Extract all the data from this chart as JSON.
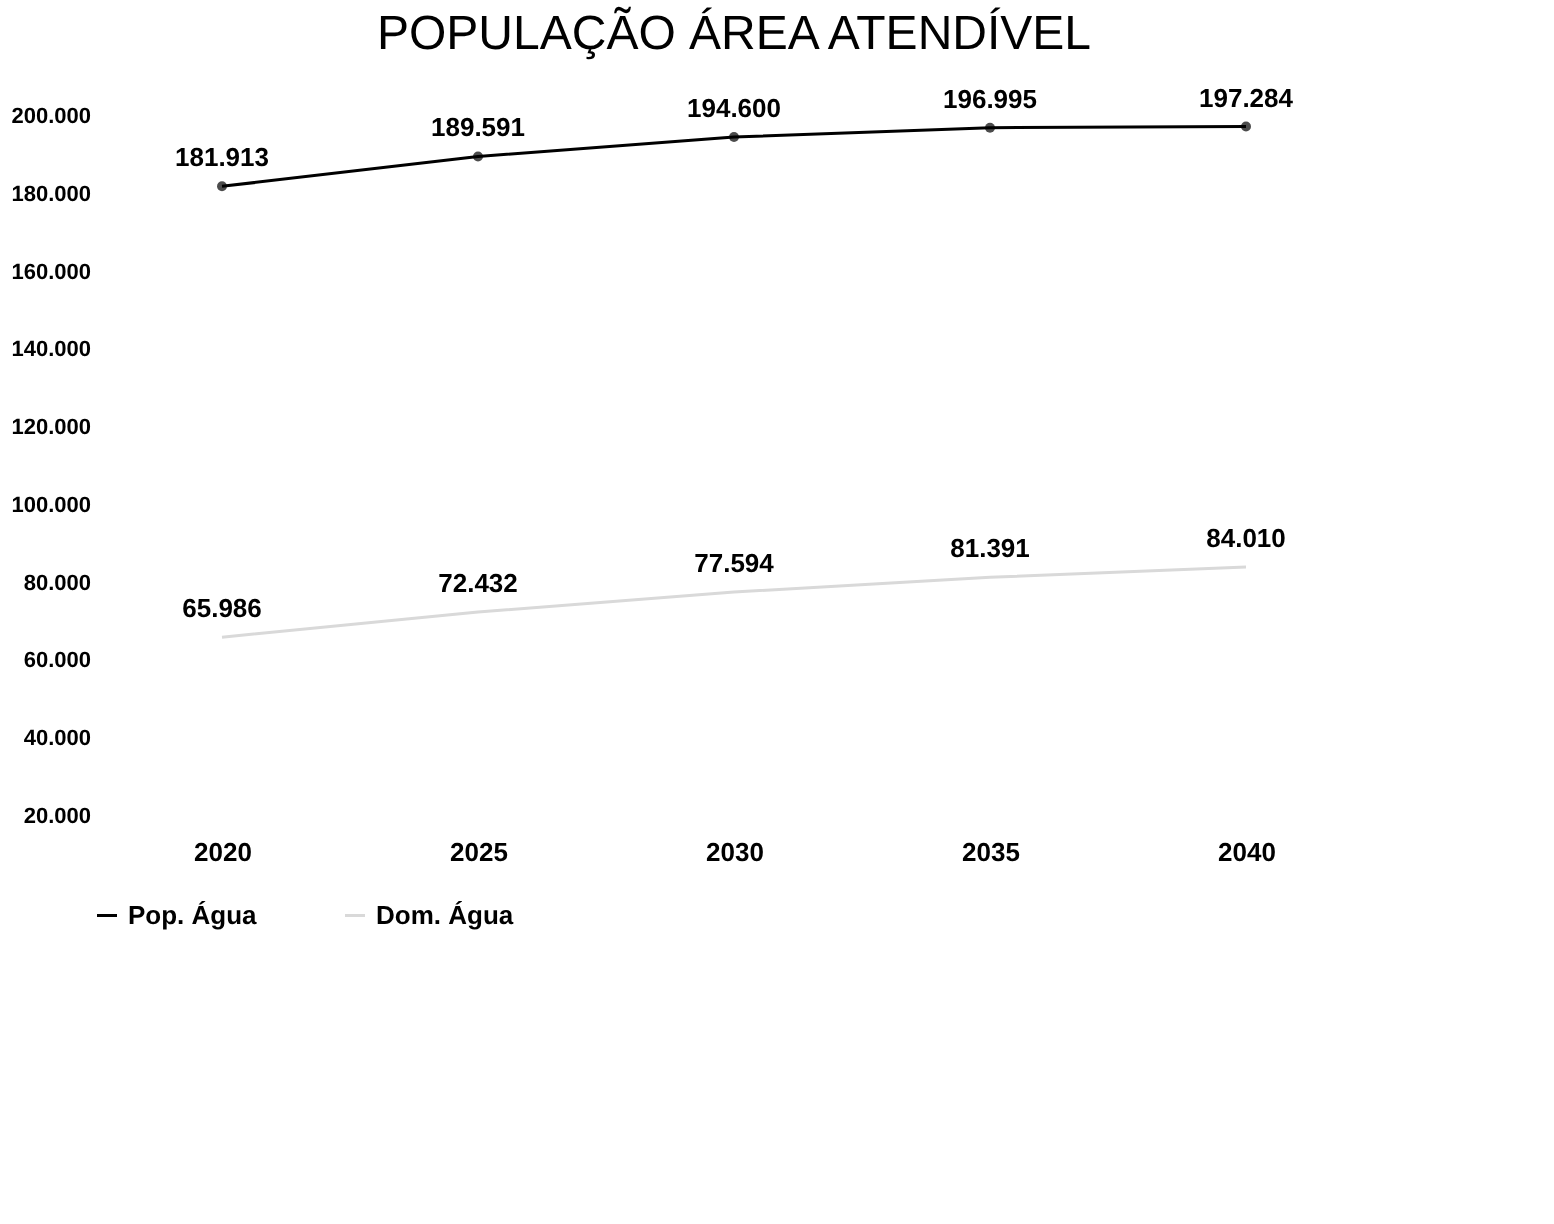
{
  "chart_data": {
    "type": "line",
    "title": "POPULAÇÃO ÁREA ATENDÍVEL",
    "categories": [
      "2020",
      "2025",
      "2030",
      "2035",
      "2040"
    ],
    "series": [
      {
        "name": "Pop. Água",
        "color": "#000000",
        "marker": "circle",
        "line_style": "solid",
        "values": [
          181913,
          189591,
          194600,
          196995,
          197284
        ],
        "value_labels": [
          "181.913",
          "189.591",
          "194.600",
          "196.995",
          "197.284"
        ]
      },
      {
        "name": "Dom. Água",
        "color": "#d9d9d9",
        "marker": "none",
        "line_style": "solid",
        "values": [
          65986,
          72432,
          77594,
          81391,
          84010
        ],
        "value_labels": [
          "65.986",
          "72.432",
          "77.594",
          "81.391",
          "84.010"
        ]
      }
    ],
    "ylim": [
      20000,
      200000
    ],
    "yticks": [
      {
        "value": 20000,
        "label": "20.000"
      },
      {
        "value": 40000,
        "label": "40.000"
      },
      {
        "value": 60000,
        "label": "60.000"
      },
      {
        "value": 80000,
        "label": "80.000"
      },
      {
        "value": 100000,
        "label": "100.000"
      },
      {
        "value": 120000,
        "label": "120.000"
      },
      {
        "value": 140000,
        "label": "140.000"
      },
      {
        "value": 160000,
        "label": "160.000"
      },
      {
        "value": 180000,
        "label": "180.000"
      },
      {
        "value": 200000,
        "label": "200.000"
      }
    ],
    "grid": false,
    "legend": "bottom"
  }
}
